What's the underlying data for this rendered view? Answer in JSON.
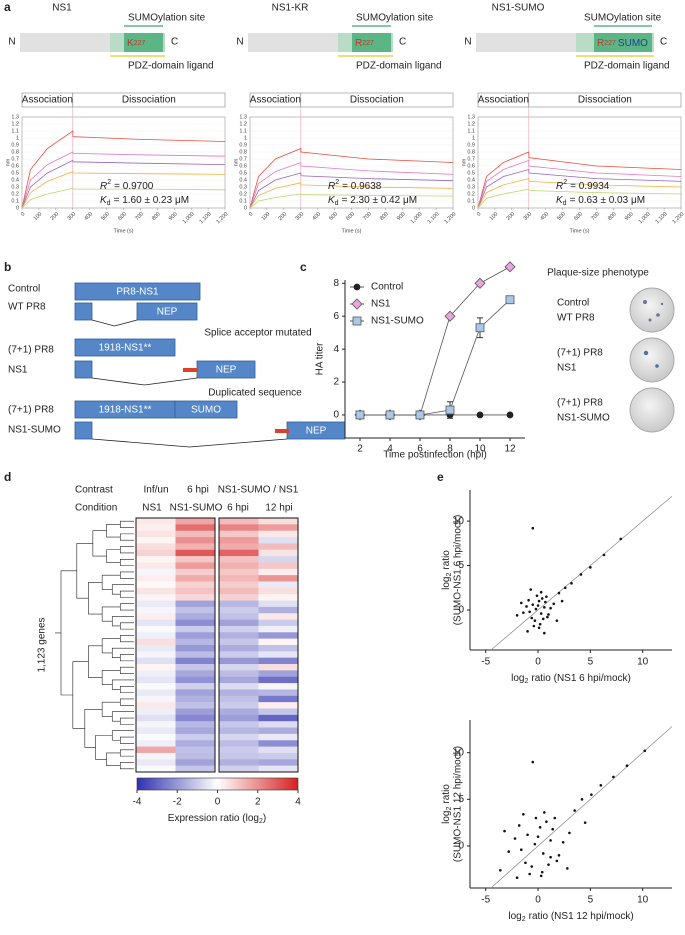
{
  "panel_labels": [
    "a",
    "b",
    "c",
    "d",
    "e"
  ],
  "panel_a": {
    "constructs": [
      {
        "name": "NS1",
        "n_term": "N",
        "c_term": "C",
        "site": "SUMOylation site",
        "residue": "K",
        "residue_number": "227",
        "ligand": "PDZ-domain ligand"
      },
      {
        "name": "NS1-KR",
        "n_term": "N",
        "c_term": "C",
        "site": "SUMOylation site",
        "residue": "R",
        "residue_number": "227",
        "ligand": "PDZ-domain ligand"
      },
      {
        "name": "NS1-SUMO",
        "n_term": "N",
        "c_term": "C",
        "site": "SUMOylation site",
        "residue": "R",
        "residue_number": "227",
        "tag": "SUMO",
        "ligand": "PDZ-domain ligand"
      }
    ]
  },
  "panel_b": {
    "rows": [
      {
        "name": [
          "Control",
          "WT PR8"
        ],
        "boxes": [
          "PR8-NS1",
          "NEP"
        ],
        "note": "Splice acceptor mutated"
      },
      {
        "name": [
          "(7+1) PR8",
          "NS1"
        ],
        "boxes": [
          "1918-NS1**",
          "NEP"
        ],
        "note": "Duplicated sequence"
      },
      {
        "name": [
          "(7+1) PR8",
          "NS1-SUMO"
        ],
        "boxes": [
          "1918-NS1**",
          "SUMO",
          "NEP"
        ]
      }
    ]
  },
  "plaque": {
    "title": "Plaque-size phenotype",
    "rows": [
      [
        "Control",
        "WT PR8"
      ],
      [
        "(7+1) PR8",
        "NS1"
      ],
      [
        "(7+1) PR8",
        "NS1-SUMO"
      ]
    ]
  },
  "chart_data": [
    {
      "type": "line",
      "phases": [
        "Association",
        "Dissociation"
      ],
      "ylabel": "nm",
      "xlabel": "Time (s)",
      "x": [
        0,
        50,
        150,
        300,
        301,
        700,
        1200
      ],
      "xlim": [
        0,
        1200
      ],
      "ylim": [
        0,
        1.3
      ],
      "xticks": [
        0,
        100,
        200,
        300,
        400,
        500,
        600,
        700,
        800,
        900,
        {
          "value": 1000,
          "label": "1,000"
        },
        {
          "value": 1100,
          "label": "1,100"
        },
        {
          "value": 1200,
          "label": "1,200"
        }
      ],
      "yticks": [
        0,
        0.1,
        0.2,
        0.3,
        0.4,
        0.5,
        0.6,
        0.7,
        0.8,
        0.9,
        1,
        1.1,
        1.2,
        1.3
      ],
      "series": [
        {
          "color": "#e74c3c",
          "values": [
            0,
            0.55,
            0.85,
            1.1,
            1.02,
            0.98,
            0.95
          ]
        },
        {
          "color": "#e377c2",
          "values": [
            0,
            0.4,
            0.62,
            0.8,
            0.78,
            0.76,
            0.74
          ]
        },
        {
          "color": "#9467bd",
          "values": [
            0,
            0.3,
            0.5,
            0.68,
            0.66,
            0.64,
            0.62
          ]
        },
        {
          "color": "#f5b041",
          "values": [
            0,
            0.22,
            0.38,
            0.52,
            0.5,
            0.49,
            0.48
          ]
        },
        {
          "color": "#bcd66a",
          "values": [
            0,
            0.12,
            0.2,
            0.28,
            0.27,
            0.27,
            0.26
          ]
        }
      ],
      "annotations": {
        "r": "R",
        "r_sup": "2",
        "r_text": "= 0.9700",
        "k": "K",
        "k_sub": "d",
        "k_text": "= 1.60 ± 0.23 μM"
      }
    },
    {
      "type": "line",
      "phases": [
        "Association",
        "Dissociation"
      ],
      "ylabel": "nm",
      "xlabel": "Time (s)",
      "x": [
        0,
        50,
        150,
        300,
        301,
        700,
        1200
      ],
      "xlim": [
        0,
        1200
      ],
      "ylim": [
        0,
        1.3
      ],
      "xticks": [
        0,
        100,
        200,
        300,
        400,
        500,
        600,
        700,
        800,
        900,
        {
          "value": 1000,
          "label": "1,000"
        },
        {
          "value": 1100,
          "label": "1,100"
        },
        {
          "value": 1200,
          "label": "1,200"
        }
      ],
      "yticks": [
        0,
        0.1,
        0.2,
        0.3,
        0.4,
        0.5,
        0.6,
        0.7,
        0.8,
        0.9,
        1,
        1.1,
        1.2,
        1.3
      ],
      "series": [
        {
          "color": "#e74c3c",
          "values": [
            0,
            0.45,
            0.7,
            0.85,
            0.8,
            0.7,
            0.65
          ]
        },
        {
          "color": "#e377c2",
          "values": [
            0,
            0.35,
            0.52,
            0.65,
            0.6,
            0.53,
            0.48
          ]
        },
        {
          "color": "#9467bd",
          "values": [
            0,
            0.25,
            0.4,
            0.5,
            0.46,
            0.42,
            0.39
          ]
        },
        {
          "color": "#f5b041",
          "values": [
            0,
            0.18,
            0.28,
            0.36,
            0.33,
            0.3,
            0.28
          ]
        },
        {
          "color": "#bcd66a",
          "values": [
            0,
            0.1,
            0.15,
            0.2,
            0.19,
            0.18,
            0.17
          ]
        }
      ],
      "annotations": {
        "r": "R",
        "r_sup": "2",
        "r_text": "= 0.9638",
        "k": "K",
        "k_sub": "d",
        "k_text": "= 2.30 ± 0.42 μM"
      }
    },
    {
      "type": "line",
      "phases": [
        "Association",
        "Dissociation"
      ],
      "ylabel": "nm",
      "xlabel": "Time (s)",
      "x": [
        0,
        50,
        150,
        300,
        301,
        700,
        1200
      ],
      "xlim": [
        0,
        1200
      ],
      "ylim": [
        0,
        1.3
      ],
      "xticks": [
        0,
        100,
        200,
        300,
        400,
        500,
        600,
        700,
        800,
        900,
        {
          "value": 1000,
          "label": "1,000"
        },
        {
          "value": 1100,
          "label": "1,100"
        },
        {
          "value": 1200,
          "label": "1,200"
        }
      ],
      "yticks": [
        0,
        0.1,
        0.2,
        0.3,
        0.4,
        0.5,
        0.6,
        0.7,
        0.8,
        0.9,
        1,
        1.1,
        1.2,
        1.3
      ],
      "series": [
        {
          "color": "#e74c3c",
          "values": [
            0,
            0.45,
            0.65,
            0.8,
            0.72,
            0.6,
            0.55
          ]
        },
        {
          "color": "#e377c2",
          "values": [
            0,
            0.38,
            0.55,
            0.68,
            0.6,
            0.5,
            0.45
          ]
        },
        {
          "color": "#9467bd",
          "values": [
            0,
            0.3,
            0.45,
            0.55,
            0.5,
            0.42,
            0.38
          ]
        },
        {
          "color": "#f5b041",
          "values": [
            0,
            0.22,
            0.33,
            0.42,
            0.38,
            0.33,
            0.3
          ]
        },
        {
          "color": "#bcd66a",
          "values": [
            0,
            0.14,
            0.2,
            0.27,
            0.25,
            0.22,
            0.2
          ]
        }
      ],
      "annotations": {
        "r": "R",
        "r_sup": "2",
        "r_text": "= 0.9934",
        "k": "K",
        "k_sub": "d",
        "k_text": "= 0.63 ± 0.03 μM"
      }
    },
    {
      "type": "line",
      "ylabel": "HA titer",
      "xlabel": "Time postinfection (hpi)",
      "legend": "upper left",
      "x": [
        2,
        4,
        6,
        8,
        10,
        12
      ],
      "xlim": [
        1,
        13
      ],
      "ylim": [
        -1.4,
        8.2
      ],
      "xticks": [
        2,
        4,
        6,
        8,
        10,
        12
      ],
      "yticks": [
        0,
        2,
        4,
        6,
        8
      ],
      "series": [
        {
          "name": "Control",
          "color": "#222222",
          "marker": "circle",
          "values": [
            0,
            0,
            0,
            0,
            0,
            0
          ]
        },
        {
          "name": "NS1",
          "color": "#e8a6dc",
          "marker": "diamond",
          "values": [
            0,
            0,
            0,
            6,
            8,
            9
          ]
        },
        {
          "name": "NS1-SUMO",
          "color": "#a9c8e8",
          "marker": "square",
          "values": [
            0,
            0,
            0,
            0.3,
            5.3,
            7
          ],
          "errors": [
            0,
            0,
            0,
            0.5,
            0.6,
            0
          ]
        }
      ]
    },
    {
      "type": "heatmap",
      "ylabel": "1,123 genes",
      "row_labels": [
        "Contrast",
        "Condition"
      ],
      "contrast_labels": [
        "Inf/un",
        "6 hpi",
        "NS1-SUMO / NS1"
      ],
      "condition_labels": [
        "NS1",
        "NS1-SUMO",
        "6 hpi",
        "12 hpi"
      ],
      "colorbar": {
        "lim": [
          -4,
          4
        ],
        "ticks": [
          -4,
          -2,
          0,
          2,
          4
        ],
        "label": "Expression ratio (log",
        "label_sub": "2",
        "label_end": ")"
      },
      "values": [
        [
          0.4,
          1.6,
          1.2,
          0.6
        ],
        [
          0.3,
          2.6,
          2.2,
          1.8
        ],
        [
          0.5,
          1.2,
          1.0,
          0.4
        ],
        [
          0.2,
          2.0,
          1.8,
          -0.6
        ],
        [
          0.6,
          1.4,
          1.5,
          1.2
        ],
        [
          0.8,
          3.0,
          2.8,
          0.5
        ],
        [
          0.2,
          1.0,
          1.1,
          -0.8
        ],
        [
          0.4,
          1.8,
          1.4,
          1.0
        ],
        [
          -0.2,
          0.9,
          1.0,
          0.3
        ],
        [
          0.3,
          1.5,
          1.3,
          1.9
        ],
        [
          0.1,
          0.8,
          0.9,
          -0.4
        ],
        [
          0.5,
          1.1,
          1.2,
          0.6
        ],
        [
          0.2,
          0.7,
          0.8,
          0.2
        ],
        [
          -0.4,
          -1.8,
          -1.4,
          -0.6
        ],
        [
          -0.2,
          -1.2,
          -1.0,
          -1.5
        ],
        [
          0.3,
          -1.6,
          -1.2,
          0.4
        ],
        [
          -0.5,
          -2.2,
          -1.8,
          -1.0
        ],
        [
          -0.1,
          -1.0,
          -0.9,
          -0.3
        ],
        [
          -0.3,
          -1.9,
          -1.5,
          -2.0
        ],
        [
          0.6,
          -1.4,
          -1.1,
          0.2
        ],
        [
          -0.4,
          -2.0,
          -1.6,
          -1.2
        ],
        [
          -0.2,
          -1.3,
          -1.0,
          -0.5
        ],
        [
          -0.6,
          -2.4,
          -2.0,
          -2.4
        ],
        [
          0.2,
          -1.1,
          -0.8,
          0.6
        ],
        [
          -0.3,
          -1.7,
          -1.3,
          -1.8
        ],
        [
          -0.5,
          -2.1,
          -1.7,
          -2.8
        ],
        [
          -0.1,
          -0.9,
          -0.7,
          -0.2
        ],
        [
          -0.4,
          -1.8,
          -1.5,
          -1.4
        ],
        [
          -0.2,
          -1.5,
          -1.2,
          -2.6
        ],
        [
          0.4,
          -1.2,
          -1.0,
          0.3
        ],
        [
          -0.3,
          -1.9,
          -1.6,
          -1.1
        ],
        [
          -0.6,
          -2.3,
          -1.9,
          -3.0
        ],
        [
          -0.2,
          -1.4,
          -1.1,
          -0.7
        ],
        [
          -0.4,
          -1.7,
          -1.4,
          -1.6
        ],
        [
          -0.1,
          -1.0,
          -0.8,
          -0.4
        ],
        [
          -0.3,
          -1.6,
          -1.3,
          -2.2
        ],
        [
          1.6,
          -1.2,
          -1.0,
          -0.6
        ],
        [
          -0.2,
          -1.3,
          -1.1,
          -1.0
        ],
        [
          -0.4,
          -1.8,
          -1.5,
          -1.7
        ],
        [
          -0.1,
          -1.1,
          -0.9,
          -0.5
        ]
      ]
    },
    {
      "type": "scatter",
      "xlim": [
        -6.5,
        12.8
      ],
      "ylim": [
        -4.5,
        13.5
      ],
      "xticks": [
        -5,
        0,
        5,
        10
      ],
      "yticks": [
        0,
        5,
        10
      ],
      "xlabel": {
        "text": "log",
        "sub": "2",
        "rest": "ratio (NS1 6 hpi/mock)"
      },
      "ylabel": {
        "text": "log",
        "sub": "2",
        "rest": "ratio",
        "line2": "(SUMO-NS1 6 hpi/mock)"
      },
      "x": [
        -0.2,
        0.3,
        -0.5,
        0.6,
        -0.8,
        0.1,
        0.9,
        -1.1,
        0.4,
        -0.3,
        0.7,
        -0.6,
        0.2,
        1.2,
        -1.4,
        0.0,
        0.5,
        -0.9,
        1.0,
        -0.1,
        0.8,
        -0.4,
        1.5,
        -1.6,
        0.3,
        2.0,
        2.6,
        3.2,
        4.1,
        5.0,
        6.3,
        7.9,
        -0.5,
        -1.0,
        1.8,
        -0.7,
        0.6,
        -2.0,
        2.3,
        0.1
      ],
      "values": [
        0.1,
        -0.4,
        0.6,
        0.3,
        -0.2,
        1.0,
        -0.8,
        0.4,
        1.3,
        -1.2,
        0.9,
        -0.9,
        -1.6,
        0.2,
        -0.3,
        0.5,
        -1.0,
        1.1,
        -0.5,
        1.6,
        1.5,
        -1.8,
        0.7,
        0.8,
        2.0,
        1.9,
        2.5,
        3.0,
        4.0,
        4.8,
        6.2,
        8.0,
        9.2,
        -2.4,
        -1.2,
        2.3,
        -2.6,
        -0.6,
        1.0,
        -2.0
      ]
    },
    {
      "type": "scatter",
      "xlim": [
        -6.5,
        12.8
      ],
      "ylim": [
        -4.5,
        13.5
      ],
      "xticks": [
        -5,
        0,
        5,
        10
      ],
      "yticks": [
        0,
        5,
        10
      ],
      "xlabel": {
        "text": "log",
        "sub": "2",
        "rest": "ratio (NS1 12 hpi/mock)"
      },
      "ylabel": {
        "text": "log",
        "sub": "2",
        "rest": "ratio",
        "line2": "(SUMO-NS1 12 hpi/mock)"
      },
      "x": [
        -0.3,
        0.5,
        -1.0,
        1.2,
        -1.6,
        0.2,
        1.8,
        -2.2,
        0.8,
        -0.6,
        1.4,
        -1.2,
        0.4,
        2.4,
        -2.8,
        0.0,
        1.0,
        -1.8,
        2.0,
        -0.2,
        1.6,
        -0.8,
        3.0,
        -3.2,
        0.6,
        3.5,
        4.2,
        5.1,
        6.0,
        7.2,
        8.5,
        10.2,
        -0.5,
        -2.0,
        2.8,
        -1.4,
        1.2,
        -3.6,
        4.5,
        0.3
      ],
      "values": [
        0.2,
        -0.8,
        1.2,
        0.6,
        -0.4,
        2.0,
        -1.6,
        0.8,
        2.6,
        -2.2,
        1.8,
        -1.8,
        -2.8,
        0.4,
        -0.6,
        1.0,
        -2.0,
        2.2,
        -1.0,
        3.0,
        3.0,
        -3.0,
        1.4,
        1.6,
        3.6,
        3.8,
        5.0,
        5.5,
        6.5,
        7.4,
        8.6,
        10.2,
        9.0,
        -3.4,
        -2.4,
        3.4,
        -1.2,
        -2.6,
        2.5,
        -3.2
      ]
    }
  ]
}
